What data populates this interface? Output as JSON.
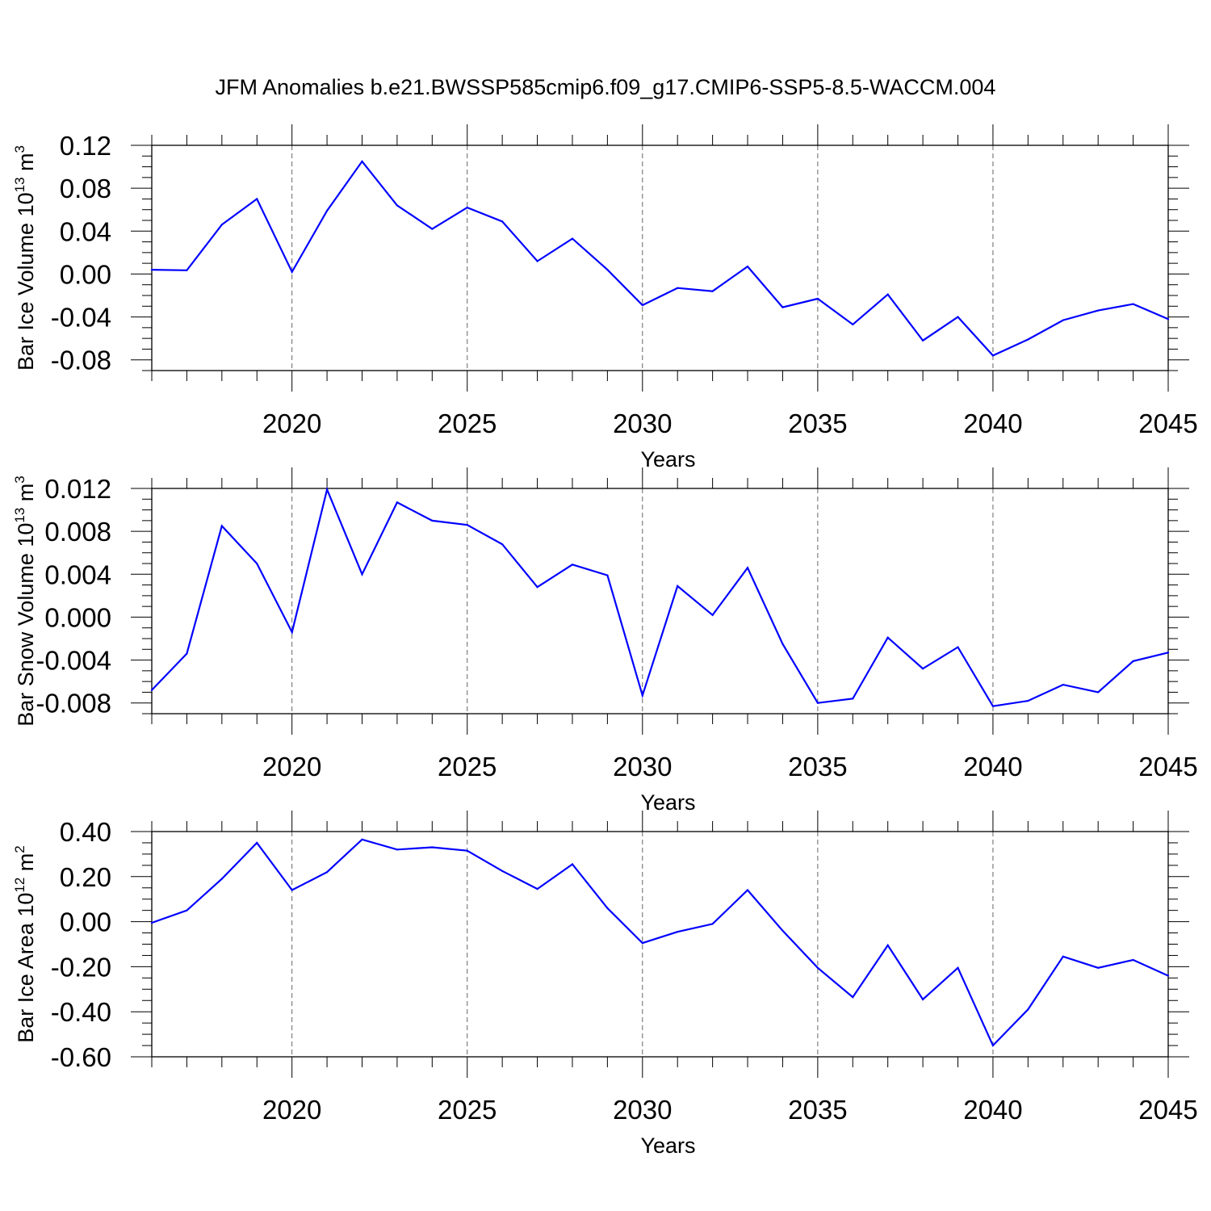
{
  "title": "JFM Anomalies b.e21.BWSSP585cmip6.f09_g17.CMIP6-SSP5-8.5-WACCM.004",
  "line_color": "#0000ff",
  "chart_data": [
    {
      "type": "line",
      "ylabel": {
        "main": "Bar Ice Volume 10",
        "exp": "13",
        "unit": " m",
        "unit_exp": "3"
      },
      "xlabel": "Years",
      "xlim": [
        2016,
        2045
      ],
      "ylim": [
        -0.09,
        0.12
      ],
      "yticks": [
        -0.08,
        -0.04,
        0.0,
        0.04,
        0.08,
        0.12
      ],
      "ytick_labels": [
        "-0.08",
        "-0.04",
        "0.00",
        "0.04",
        "0.08",
        "0.12"
      ],
      "xticks": [
        2020,
        2025,
        2030,
        2035,
        2040,
        2045
      ],
      "xtick_labels": [
        "2020",
        "2025",
        "2030",
        "2035",
        "2040",
        "2045"
      ],
      "grid": "dashed vertical at major x ticks",
      "x": [
        2016,
        2017,
        2018,
        2019,
        2020,
        2021,
        2022,
        2023,
        2024,
        2025,
        2026,
        2027,
        2028,
        2029,
        2030,
        2031,
        2032,
        2033,
        2034,
        2035,
        2036,
        2037,
        2038,
        2039,
        2040,
        2041,
        2042,
        2043,
        2044,
        2045
      ],
      "values": [
        0.004,
        0.0035,
        0.046,
        0.07,
        0.002,
        0.059,
        0.105,
        0.064,
        0.042,
        0.062,
        0.049,
        0.012,
        0.033,
        0.004,
        -0.029,
        -0.013,
        -0.016,
        0.007,
        -0.031,
        -0.023,
        -0.047,
        -0.019,
        -0.062,
        -0.04,
        -0.076,
        -0.061,
        -0.043,
        -0.034,
        -0.028,
        -0.042
      ]
    },
    {
      "type": "line",
      "ylabel": {
        "main": "Bar Snow Volume 10",
        "exp": "13",
        "unit": " m",
        "unit_exp": "3"
      },
      "xlabel": "Years",
      "xlim": [
        2016,
        2045
      ],
      "ylim": [
        -0.009,
        0.012
      ],
      "yticks": [
        -0.008,
        -0.004,
        0.0,
        0.004,
        0.008,
        0.012
      ],
      "ytick_labels": [
        "-0.008",
        "-0.004",
        "0.000",
        "0.004",
        "0.008",
        "0.012"
      ],
      "xticks": [
        2020,
        2025,
        2030,
        2035,
        2040,
        2045
      ],
      "xtick_labels": [
        "2020",
        "2025",
        "2030",
        "2035",
        "2040",
        "2045"
      ],
      "grid": "dashed vertical at major x ticks",
      "x": [
        2016,
        2017,
        2018,
        2019,
        2020,
        2021,
        2022,
        2023,
        2024,
        2025,
        2026,
        2027,
        2028,
        2029,
        2030,
        2031,
        2032,
        2033,
        2034,
        2035,
        2036,
        2037,
        2038,
        2039,
        2040,
        2041,
        2042,
        2043,
        2044,
        2045
      ],
      "values": [
        -0.0068,
        -0.0034,
        0.0085,
        0.005,
        -0.0014,
        0.0119,
        0.004,
        0.0107,
        0.009,
        0.0086,
        0.0068,
        0.0028,
        0.0049,
        0.0039,
        -0.0073,
        0.0029,
        0.0002,
        0.0046,
        -0.0025,
        -0.008,
        -0.0076,
        -0.0019,
        -0.0048,
        -0.0028,
        -0.0083,
        -0.0078,
        -0.0063,
        -0.007,
        -0.0041,
        -0.0033
      ]
    },
    {
      "type": "line",
      "ylabel": {
        "main": "Bar Ice Area 10",
        "exp": "12",
        "unit": " m",
        "unit_exp": "2"
      },
      "xlabel": "Years",
      "xlim": [
        2016,
        2045
      ],
      "ylim": [
        -0.6,
        0.4
      ],
      "yticks": [
        -0.6,
        -0.4,
        -0.2,
        0.0,
        0.2,
        0.4
      ],
      "ytick_labels": [
        "-0.60",
        "-0.40",
        "-0.20",
        "0.00",
        "0.20",
        "0.40"
      ],
      "xticks": [
        2020,
        2025,
        2030,
        2035,
        2040,
        2045
      ],
      "xtick_labels": [
        "2020",
        "2025",
        "2030",
        "2035",
        "2040",
        "2045"
      ],
      "grid": "dashed vertical at major x ticks",
      "x": [
        2016,
        2017,
        2018,
        2019,
        2020,
        2021,
        2022,
        2023,
        2024,
        2025,
        2026,
        2027,
        2028,
        2029,
        2030,
        2031,
        2032,
        2033,
        2034,
        2035,
        2036,
        2037,
        2038,
        2039,
        2040,
        2041,
        2042,
        2043,
        2044,
        2045
      ],
      "values": [
        -0.005,
        0.05,
        0.19,
        0.35,
        0.14,
        0.22,
        0.365,
        0.32,
        0.33,
        0.315,
        0.225,
        0.145,
        0.255,
        0.06,
        -0.095,
        -0.045,
        -0.01,
        0.14,
        -0.04,
        -0.205,
        -0.335,
        -0.105,
        -0.345,
        -0.205,
        -0.55,
        -0.39,
        -0.155,
        -0.205,
        -0.17,
        -0.24
      ]
    }
  ]
}
